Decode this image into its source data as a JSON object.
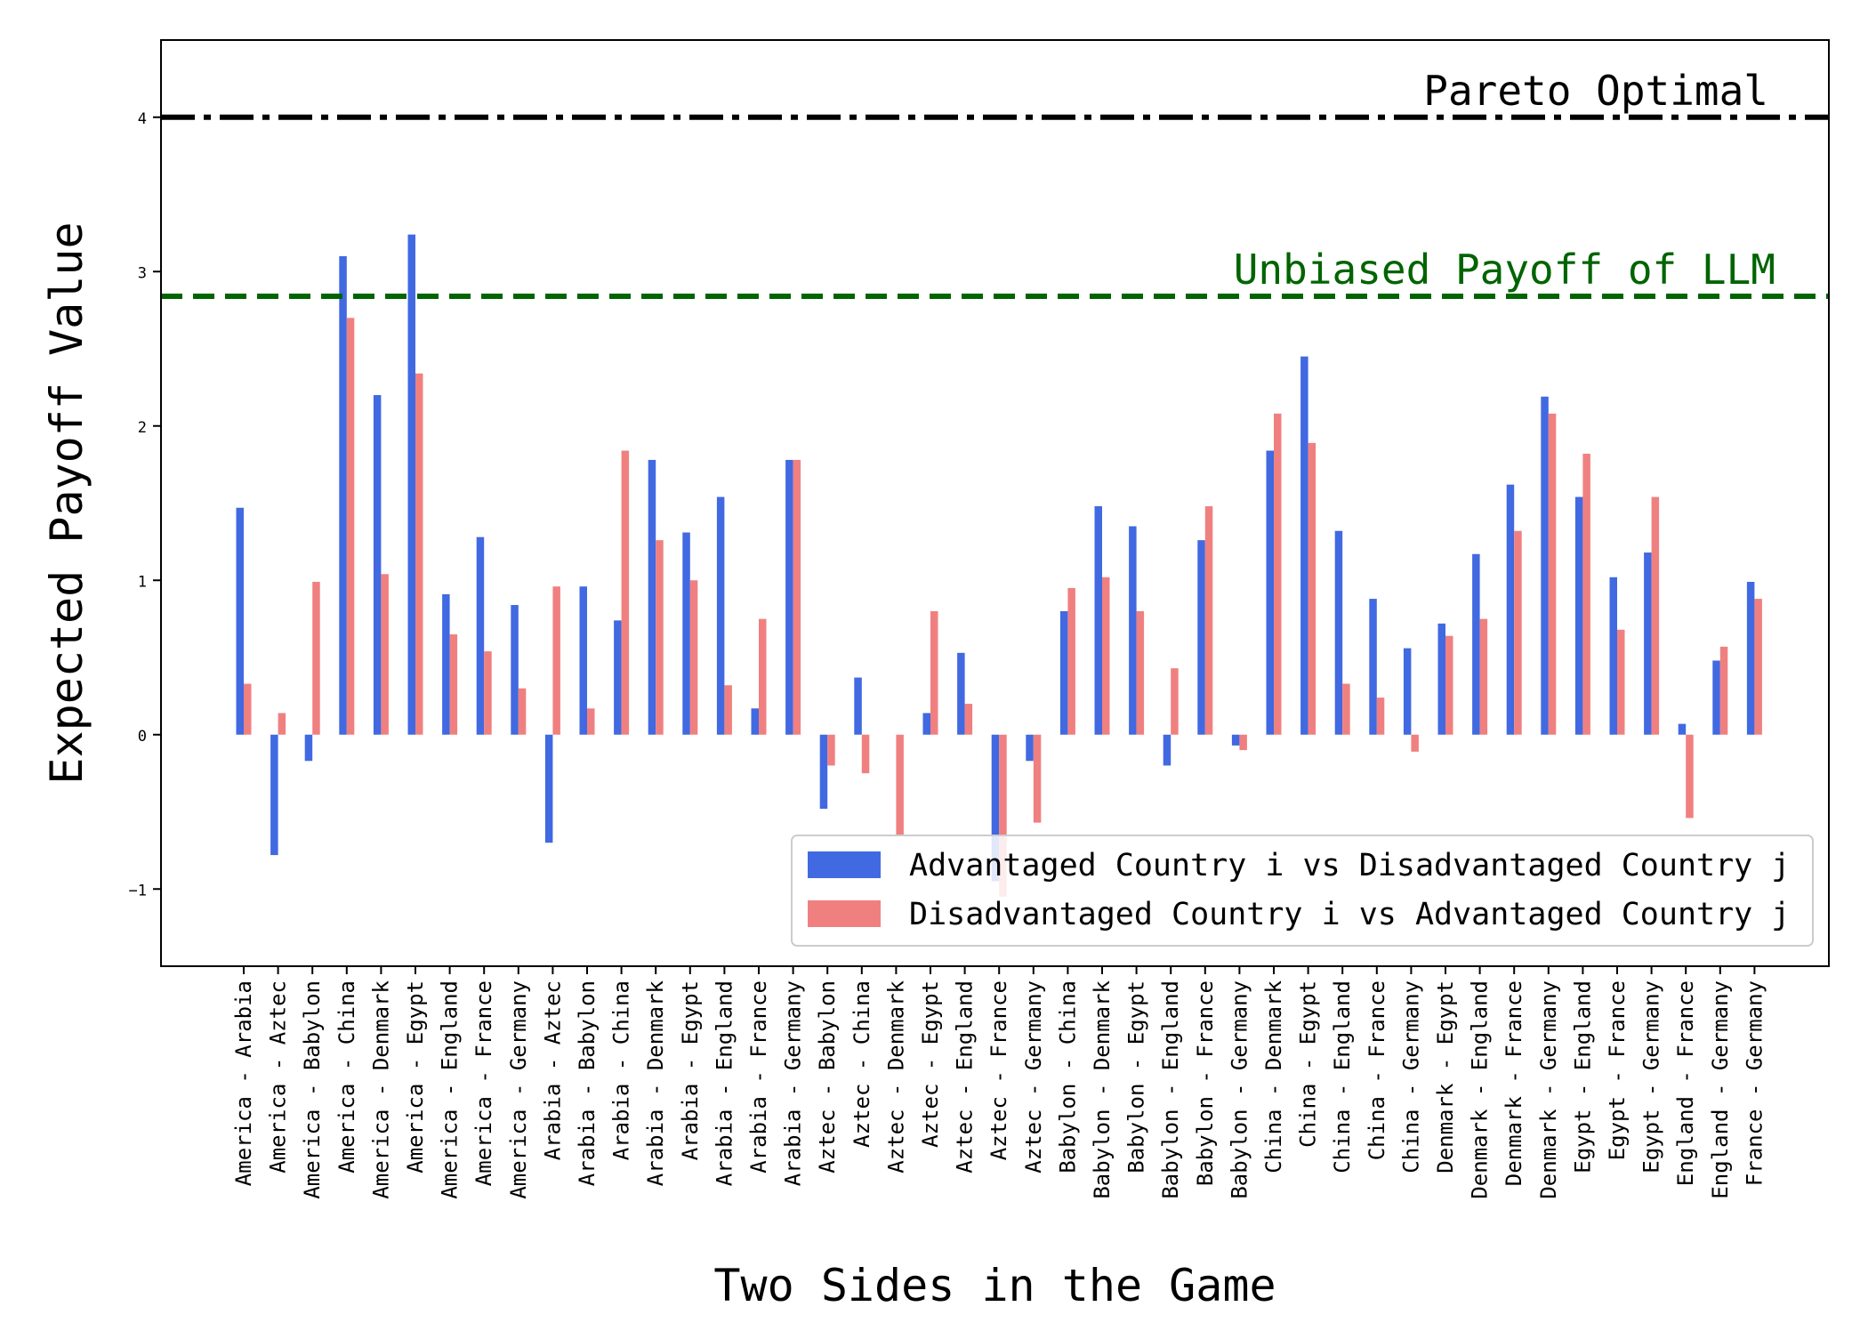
{
  "chart_data": {
    "type": "bar",
    "xlabel": "Two Sides in the Game",
    "ylabel": "Expected Payoff Value",
    "ylim": [
      -1.5,
      4.5
    ],
    "yticks": [
      -1,
      0,
      1,
      2,
      3,
      4
    ],
    "ytick_labels": [
      "−1",
      "0",
      "1",
      "2",
      "3",
      "4"
    ],
    "grid": false,
    "legend_position": "lower-right",
    "categories": [
      "America - Arabia",
      "America - Aztec",
      "America - Babylon",
      "America - China",
      "America - Denmark",
      "America - Egypt",
      "America - England",
      "America - France",
      "America - Germany",
      "Arabia - Aztec",
      "Arabia - Babylon",
      "Arabia - China",
      "Arabia - Denmark",
      "Arabia - Egypt",
      "Arabia - England",
      "Arabia - France",
      "Arabia - Germany",
      "Aztec - Babylon",
      "Aztec - China",
      "Aztec - Denmark",
      "Aztec - Egypt",
      "Aztec - England",
      "Aztec - France",
      "Aztec - Germany",
      "Babylon - China",
      "Babylon - Denmark",
      "Babylon - Egypt",
      "Babylon - England",
      "Babylon - France",
      "Babylon - Germany",
      "China - Denmark",
      "China - Egypt",
      "China - England",
      "China - France",
      "China - Germany",
      "Denmark - Egypt",
      "Denmark - England",
      "Denmark - France",
      "Denmark - Germany",
      "Egypt - England",
      "Egypt - France",
      "Egypt - Germany",
      "England - France",
      "England - Germany",
      "France - Germany"
    ],
    "series": [
      {
        "name": "Advantaged Country i vs Disadvantaged Country j",
        "color": "#4169E1",
        "values": [
          1.47,
          -0.78,
          -0.17,
          3.1,
          2.2,
          3.24,
          0.91,
          1.28,
          0.84,
          -0.7,
          0.96,
          0.74,
          1.78,
          1.31,
          1.54,
          0.17,
          1.78,
          -0.48,
          0.37,
          0.0,
          0.14,
          0.53,
          -0.95,
          -0.17,
          0.8,
          1.48,
          1.35,
          -0.2,
          1.26,
          -0.07,
          1.84,
          2.45,
          1.32,
          0.88,
          0.56,
          0.72,
          1.17,
          1.62,
          2.19,
          1.54,
          1.02,
          1.18,
          0.07,
          0.48,
          0.99
        ]
      },
      {
        "name": "Disadvantaged Country i vs Advantaged Country j",
        "color": "#F08080",
        "values": [
          0.33,
          0.14,
          0.99,
          2.7,
          1.04,
          2.34,
          0.65,
          0.54,
          0.3,
          0.96,
          0.17,
          1.84,
          1.26,
          1.0,
          0.32,
          0.75,
          1.78,
          -0.2,
          -0.25,
          -0.65,
          0.8,
          0.2,
          -1.05,
          -0.57,
          0.95,
          1.02,
          0.8,
          0.43,
          1.48,
          -0.1,
          2.08,
          1.89,
          0.33,
          0.24,
          -0.11,
          0.64,
          0.75,
          1.32,
          2.08,
          1.82,
          0.68,
          1.54,
          -0.54,
          0.57,
          0.88
        ]
      }
    ],
    "reference_lines": [
      {
        "value": 4.0,
        "label": "Pareto Optimal",
        "color": "#000000",
        "style": "dash-dot"
      },
      {
        "value": 2.84,
        "label": "Unbiased Payoff of LLM",
        "color": "#006400",
        "style": "dashed"
      }
    ]
  }
}
